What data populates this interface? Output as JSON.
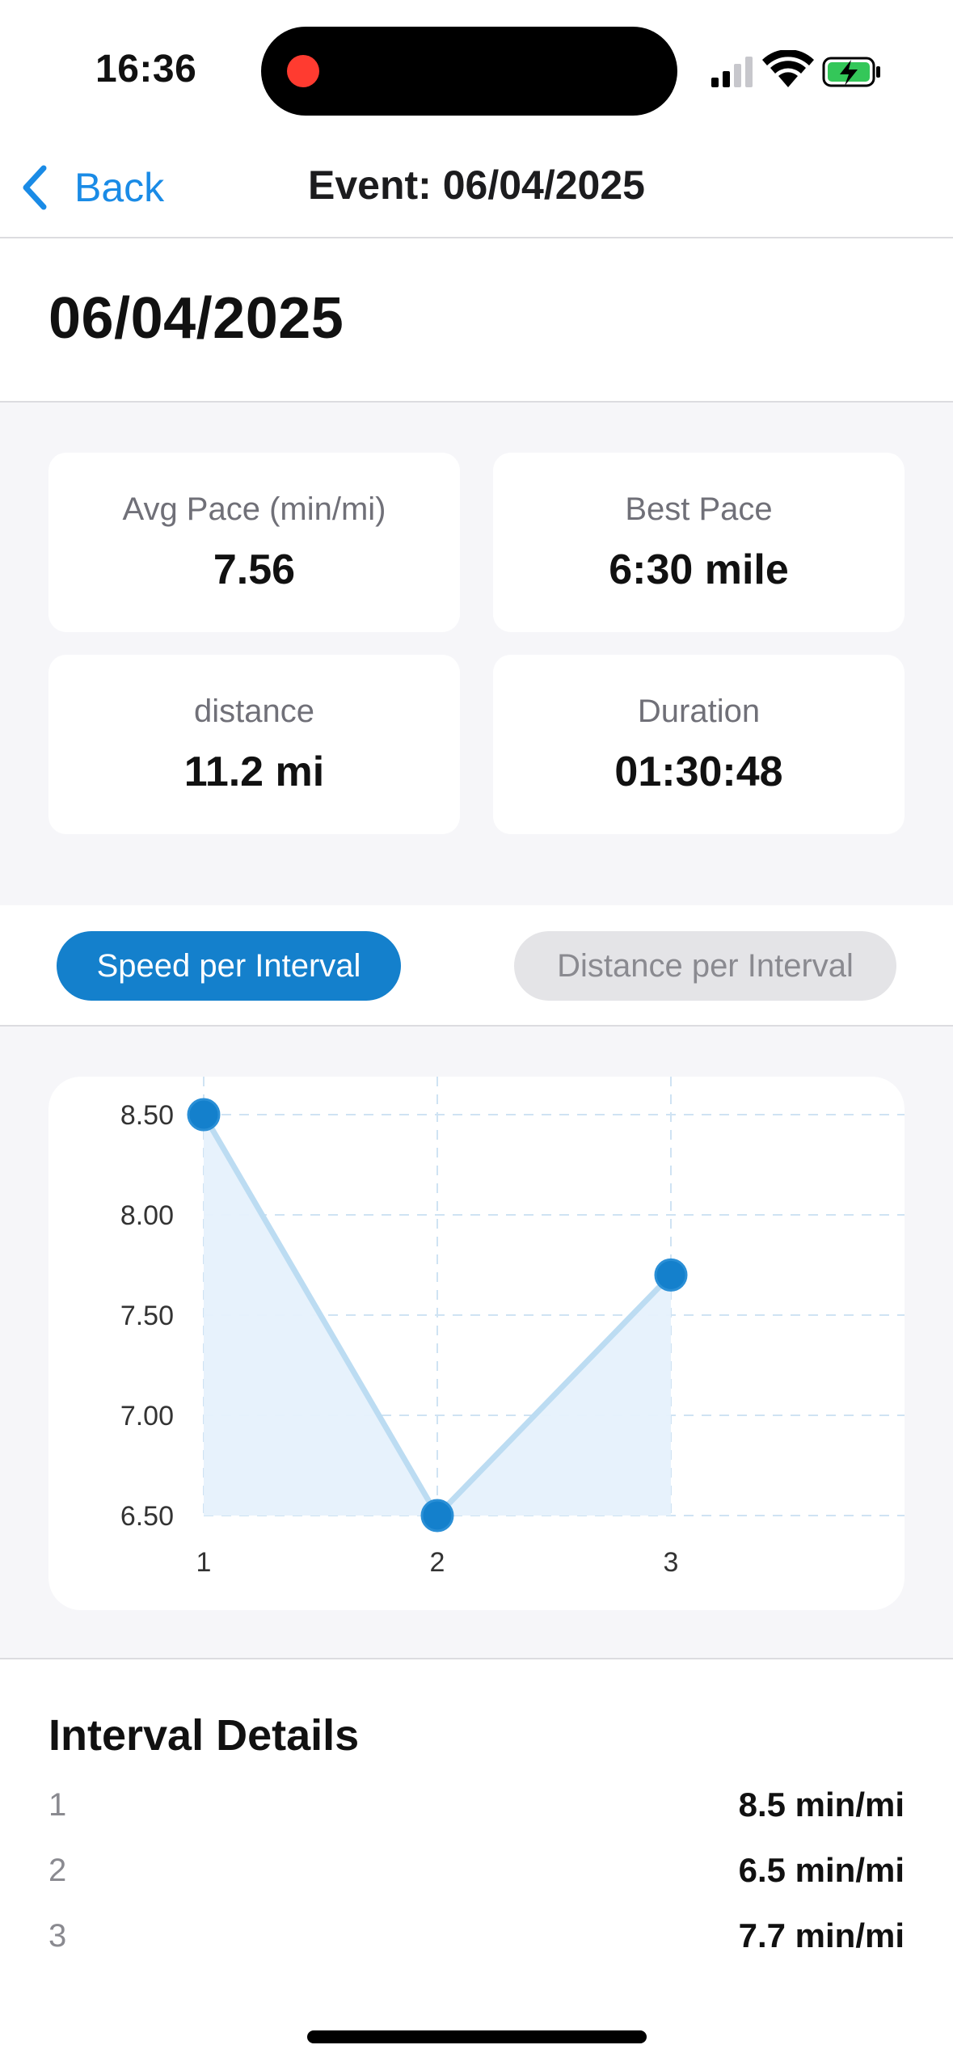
{
  "status_bar": {
    "time": "16:36"
  },
  "nav": {
    "back_label": "Back",
    "title": "Event: 06/04/2025"
  },
  "header": {
    "title": "06/04/2025"
  },
  "stats": [
    {
      "label": "Avg Pace (min/mi)",
      "value": "7.56"
    },
    {
      "label": "Best Pace",
      "value": "6:30 mile"
    },
    {
      "label": "distance",
      "value": "11.2 mi"
    },
    {
      "label": "Duration",
      "value": "01:30:48"
    }
  ],
  "tabs": {
    "active": "Speed per Interval",
    "inactive": "Distance per Interval"
  },
  "colors": {
    "accent": "#1480cc",
    "area_fill": "#e6f1fc",
    "grid": "#cfe3f3"
  },
  "chart_data": {
    "type": "line",
    "x": [
      1,
      2,
      3
    ],
    "values": [
      8.5,
      6.5,
      7.7
    ],
    "ylim": [
      6.5,
      8.5
    ],
    "yticks": [
      "8.50",
      "8.00",
      "7.50",
      "7.00",
      "6.50"
    ],
    "xticks": [
      "1",
      "2",
      "3"
    ],
    "grid": true,
    "area": true
  },
  "details": {
    "title": "Interval Details",
    "rows": [
      {
        "index": "1",
        "value": "8.5 min/mi"
      },
      {
        "index": "2",
        "value": "6.5 min/mi"
      },
      {
        "index": "3",
        "value": "7.7 min/mi"
      }
    ]
  }
}
